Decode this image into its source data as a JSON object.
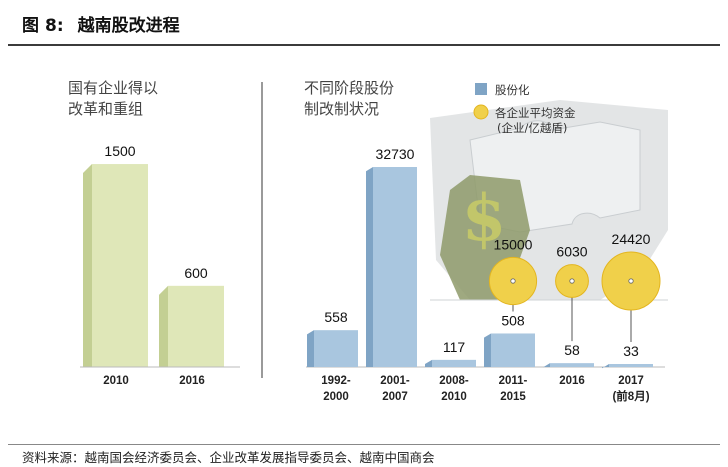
{
  "figure": {
    "label": "图",
    "number": "8:",
    "title": "越南股改进程"
  },
  "source": "资料来源：越南国会经济委员会、企业改革发展指导委员会、越南中国商会",
  "chart_data": [
    {
      "type": "bar",
      "title_lines": [
        "国有企业得以",
        "改革和重组"
      ],
      "categories": [
        "2010",
        "2016"
      ],
      "values": [
        1500,
        600
      ],
      "ylim": [
        0,
        1700
      ],
      "grid": false,
      "colors": {
        "bar": "#dfe7b8",
        "bar_side": "#c3cf93"
      }
    },
    {
      "type": "bar",
      "title_lines": [
        "不同阶段股份",
        "制改制状况"
      ],
      "categories": [
        [
          "1992-",
          "2000"
        ],
        [
          "2001-",
          "2007"
        ],
        [
          "2008-",
          "2010"
        ],
        [
          "2011-",
          "2015"
        ],
        [
          "2016"
        ],
        [
          "2017",
          "(前8月)"
        ]
      ],
      "series": [
        {
          "name": "股份化",
          "values": [
            558,
            32730,
            117,
            508,
            58,
            33
          ]
        },
        {
          "name": "各企业平均资金",
          "name_line2": "(企业/亿越盾)",
          "values": [
            null,
            null,
            null,
            15000,
            6030,
            24420
          ]
        }
      ],
      "legend_position": "top-right",
      "grid": false,
      "colors": {
        "bar": "#a9c6df",
        "bar_side": "#7fa4c5",
        "bubble": "#f0d04a",
        "bubble_edge": "#e3b51f",
        "legend_square": "#7fa4c5"
      }
    }
  ]
}
